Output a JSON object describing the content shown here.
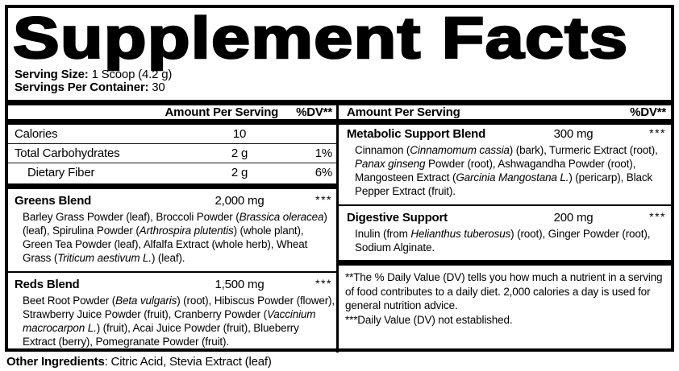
{
  "title": "Supplement Facts",
  "serving": {
    "size_label": "Serving Size:",
    "size_value": " 1 Scoop (4.2 g)",
    "container_label": "Servings Per Container:",
    "container_value": " 30"
  },
  "column_headers": {
    "amount": "Amount Per Serving",
    "dv": "%DV**"
  },
  "left": {
    "nutrients": [
      {
        "name": "Calories",
        "amount": "10",
        "dv": ""
      },
      {
        "name": "Total Carbohydrates",
        "amount": "2 g",
        "dv": "1%"
      },
      {
        "name": "Dietary Fiber",
        "amount": "2 g",
        "dv": "6%"
      }
    ],
    "blends": [
      {
        "name": "Greens Blend",
        "amount": "2,000 mg",
        "dv": "***",
        "description": "Barley Grass Powder (leaf), Broccoli Powder (*Brassica oleracea*) (leaf), Spirulina Powder (*Arthrospira plutentis*) (whole plant), Green Tea Powder (leaf), Alfalfa Extract (whole herb), Wheat Grass (*Triticum aestivum L.*) (leaf)."
      },
      {
        "name": "Reds Blend",
        "amount": "1,500 mg",
        "dv": "***",
        "description": "Beet Root Powder (*Beta vulgaris*) (root), Hibiscus Powder (flower), Strawberry Juice Powder (fruit), Cranberry Powder (*Vaccinium macrocarpon L.*) (fruit), Acai Juice Powder (fruit), Blueberry Extract (berry), Pomegranate Powder (fruit)."
      }
    ]
  },
  "right": {
    "blends": [
      {
        "name": "Metabolic Support Blend",
        "amount": "300 mg",
        "dv": "***",
        "description": "Cinnamon (*Cinnamomum cassia*) (bark), Turmeric Extract (root), *Panax ginseng* Powder (root), Ashwagandha Powder (root), Mangosteen Extract (*Garcinia Mangostana L.*) (pericarp), Black Pepper Extract (fruit)."
      },
      {
        "name": "Digestive Support",
        "amount": "200 mg",
        "dv": "***",
        "description": "Inulin (from *Helianthus tuberosus*) (root), Ginger Powder (root), Sodium Alginate."
      }
    ],
    "footnotes": [
      "**The % Daily Value (DV) tells you how much a nutrient in a serving of food contributes to a daily diet. 2,000 calories a day is used for general nutrition advice.",
      "***Daily Value (DV) not established."
    ]
  },
  "other_ingredients": {
    "label": "Other Ingredients",
    "value": ": Citric Acid, Stevia Extract (leaf)"
  },
  "colors": {
    "ink": "#000000",
    "background": "#ffffff"
  }
}
